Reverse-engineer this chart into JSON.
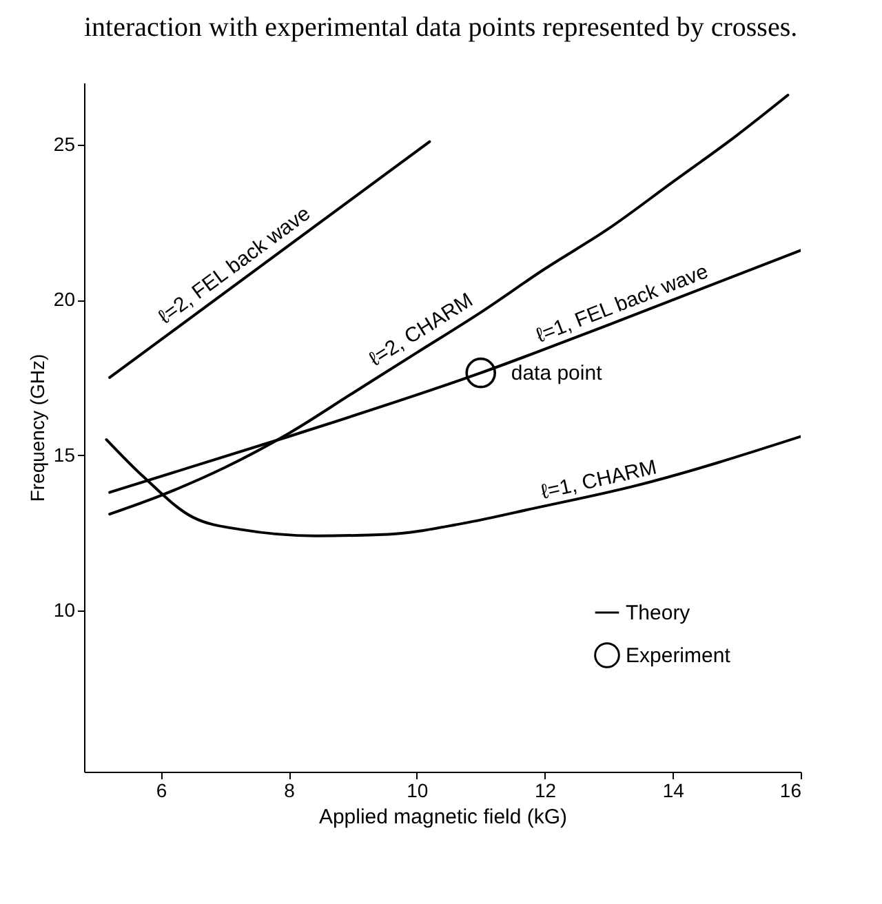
{
  "chart_data": {
    "type": "line",
    "title": "interaction with experimental data points represented by crosses.",
    "xlabel": "Applied magnetic field (kG)",
    "ylabel": "Frequency (GHz)",
    "xlim": [
      4.8,
      16
    ],
    "ylim": [
      4.8,
      27
    ],
    "xticks": [
      6,
      8,
      10,
      12,
      14,
      16
    ],
    "yticks": [
      10,
      15,
      20,
      25
    ],
    "grid": false,
    "legend": "right",
    "line_style": "solid",
    "series": [
      {
        "name": "Theory",
        "color": "#000000",
        "x": [
          5.2,
          10.2
        ],
        "values": [
          17.5,
          25.1
        ]
      },
      {
        "color": "#000000",
        "x": [
          5.2,
          6,
          7,
          8,
          9,
          10,
          11,
          12,
          13,
          14,
          15,
          15.8
        ],
        "values": [
          13.1,
          13.7,
          14.6,
          15.7,
          17.0,
          18.3,
          19.6,
          21.0,
          22.3,
          23.8,
          25.3,
          26.6
        ]
      },
      {
        "color": "#000000",
        "x": [
          5.2,
          8,
          11,
          13,
          16
        ],
        "values": [
          13.8,
          15.6,
          17.65,
          19.2,
          21.6
        ]
      },
      {
        "color": "#000000",
        "x": [
          5.15,
          5.73,
          6.5,
          7.26,
          8.42,
          9.56,
          10.72,
          11.86,
          13.39,
          16
        ],
        "values": [
          15.5,
          14.3,
          13.0,
          12.6,
          12.4,
          12.45,
          12.8,
          13.3,
          14.0,
          15.6
        ]
      },
      {
        "name": "Experiment",
        "type": "scatter",
        "color": "#000000",
        "marker": "circle",
        "x": [
          11
        ],
        "values": [
          17.65
        ]
      }
    ],
    "annotations": [
      {
        "text": "ℓ=2, FEL back wave",
        "x": 7.3,
        "y": 20.7
      },
      {
        "text": "ℓ=2, CHARM",
        "x": 10.2,
        "y": 18.6
      },
      {
        "text": "ℓ=1, FEL back wave",
        "x": 13.3,
        "y": 19.4
      },
      {
        "text": "ℓ=1, CHARM",
        "x": 12.9,
        "y": 13.7
      },
      {
        "text": "data point",
        "x": 11,
        "y": 17.65
      }
    ]
  }
}
